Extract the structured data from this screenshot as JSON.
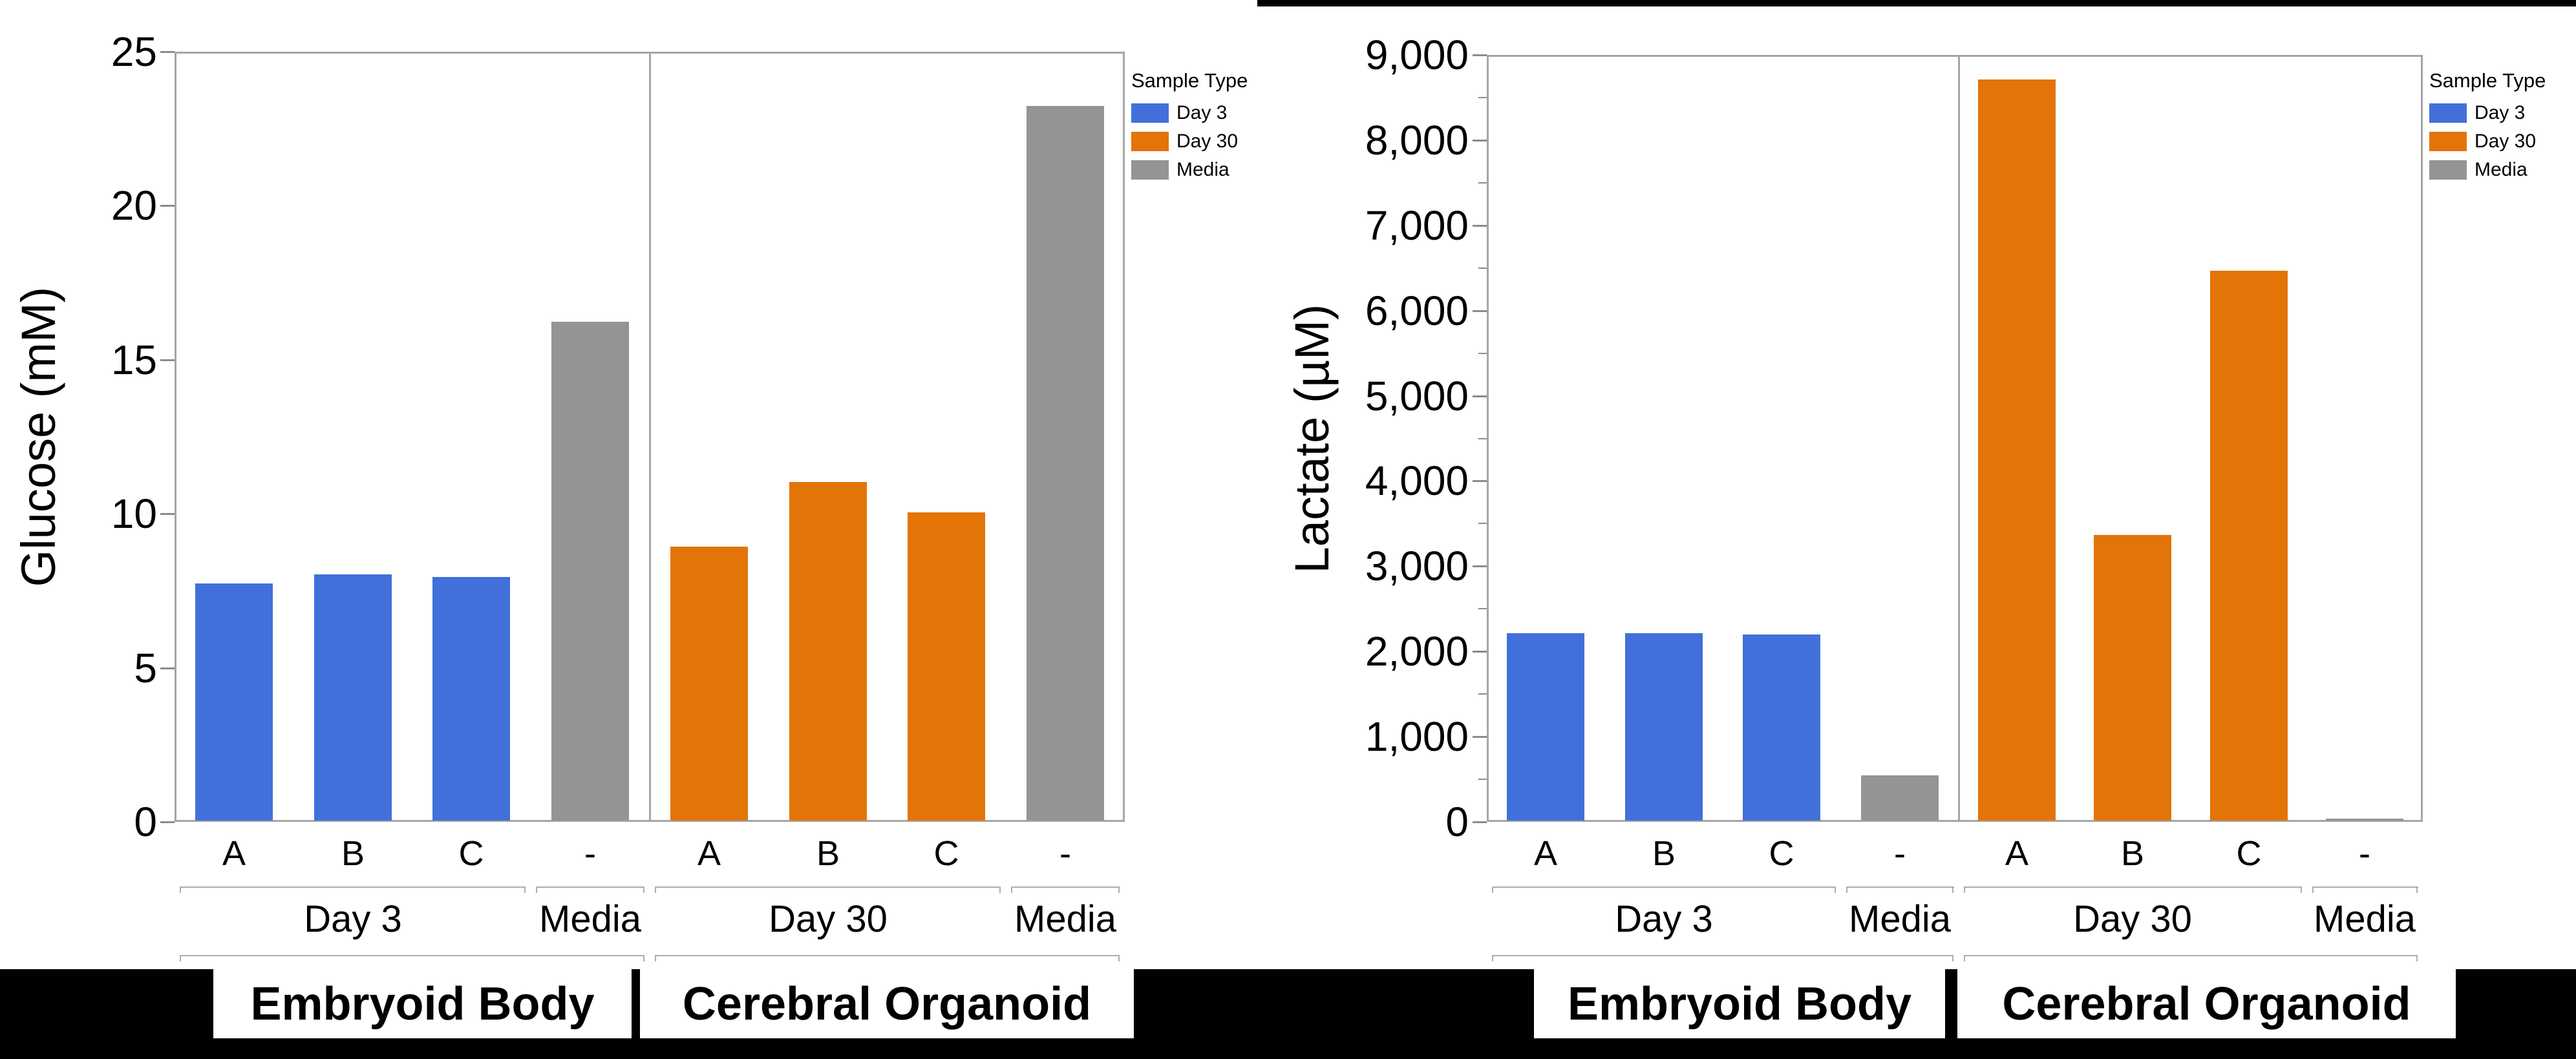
{
  "figure": {
    "background": "#FFFFFF",
    "top_band_color": "#000000",
    "bottom_band_color": "#000000"
  },
  "colors": {
    "day3": "#4170DB",
    "day30": "#E27408",
    "media": "#949494",
    "frame": "#A6A6A6",
    "tick": "#8C8C8C",
    "bracket": "#ADADAD",
    "text": "#000000",
    "panel_box_bg": "#FFFFFF"
  },
  "chart_data": [
    {
      "type": "bar",
      "title": "",
      "xlabel": "",
      "ylabel": "Glucose (mM)",
      "ylim": [
        0,
        25
      ],
      "grid": false,
      "legend_position": "right",
      "yticks": [
        {
          "value": 0,
          "label": "0"
        },
        {
          "value": 5,
          "label": "5"
        },
        {
          "value": 10,
          "label": "10"
        },
        {
          "value": 15,
          "label": "15"
        },
        {
          "value": 20,
          "label": "20"
        },
        {
          "value": 25,
          "label": "25"
        }
      ],
      "minor_tick_interval": null,
      "legend": {
        "title": "Sample Type",
        "items": [
          {
            "label": "Day 3",
            "series": "day3"
          },
          {
            "label": "Day 30",
            "series": "day30"
          },
          {
            "label": "Media",
            "series": "media"
          }
        ]
      },
      "sections": [
        {
          "panel": "Embryoid Body",
          "groups": [
            {
              "label": "Day 3",
              "bars": [
                {
                  "category": "A",
                  "series": "day3",
                  "value": 7.7
                },
                {
                  "category": "B",
                  "series": "day3",
                  "value": 8.0
                },
                {
                  "category": "C",
                  "series": "day3",
                  "value": 7.9
                }
              ]
            },
            {
              "label": "Media",
              "bars": [
                {
                  "category": "-",
                  "series": "media",
                  "value": 16.2
                }
              ]
            }
          ]
        },
        {
          "panel": "Cerebral Organoid",
          "groups": [
            {
              "label": "Day 30",
              "bars": [
                {
                  "category": "A",
                  "series": "day30",
                  "value": 8.9
                },
                {
                  "category": "B",
                  "series": "day30",
                  "value": 11.0
                },
                {
                  "category": "C",
                  "series": "day30",
                  "value": 10.0
                }
              ]
            },
            {
              "label": "Media",
              "bars": [
                {
                  "category": "-",
                  "series": "media",
                  "value": 23.2
                }
              ]
            }
          ]
        }
      ]
    },
    {
      "type": "bar",
      "title": "",
      "xlabel": "",
      "ylabel": "Lactate (µM)",
      "ylim": [
        0,
        9000
      ],
      "grid": false,
      "legend_position": "right",
      "yticks": [
        {
          "value": 0,
          "label": "0"
        },
        {
          "value": 1000,
          "label": "1,000"
        },
        {
          "value": 2000,
          "label": "2,000"
        },
        {
          "value": 3000,
          "label": "3,000"
        },
        {
          "value": 4000,
          "label": "4,000"
        },
        {
          "value": 5000,
          "label": "5,000"
        },
        {
          "value": 6000,
          "label": "6,000"
        },
        {
          "value": 7000,
          "label": "7,000"
        },
        {
          "value": 8000,
          "label": "8,000"
        },
        {
          "value": 9000,
          "label": "9,000"
        }
      ],
      "minor_tick_interval": 500,
      "legend": {
        "title": "Sample Type",
        "items": [
          {
            "label": "Day 3",
            "series": "day3"
          },
          {
            "label": "Day 30",
            "series": "day30"
          },
          {
            "label": "Media",
            "series": "media"
          }
        ]
      },
      "sections": [
        {
          "panel": "Embryoid Body",
          "groups": [
            {
              "label": "Day 3",
              "bars": [
                {
                  "category": "A",
                  "series": "day3",
                  "value": 2200
                },
                {
                  "category": "B",
                  "series": "day3",
                  "value": 2200
                },
                {
                  "category": "C",
                  "series": "day3",
                  "value": 2180
                }
              ]
            },
            {
              "label": "Media",
              "bars": [
                {
                  "category": "-",
                  "series": "media",
                  "value": 530
                }
              ]
            }
          ]
        },
        {
          "panel": "Cerebral Organoid",
          "groups": [
            {
              "label": "Day 30",
              "bars": [
                {
                  "category": "A",
                  "series": "day30",
                  "value": 8700
                },
                {
                  "category": "B",
                  "series": "day30",
                  "value": 3350
                },
                {
                  "category": "C",
                  "series": "day30",
                  "value": 6450
                }
              ]
            },
            {
              "label": "Media",
              "bars": [
                {
                  "category": "-",
                  "series": "media",
                  "value": 25
                }
              ]
            }
          ]
        }
      ]
    }
  ]
}
